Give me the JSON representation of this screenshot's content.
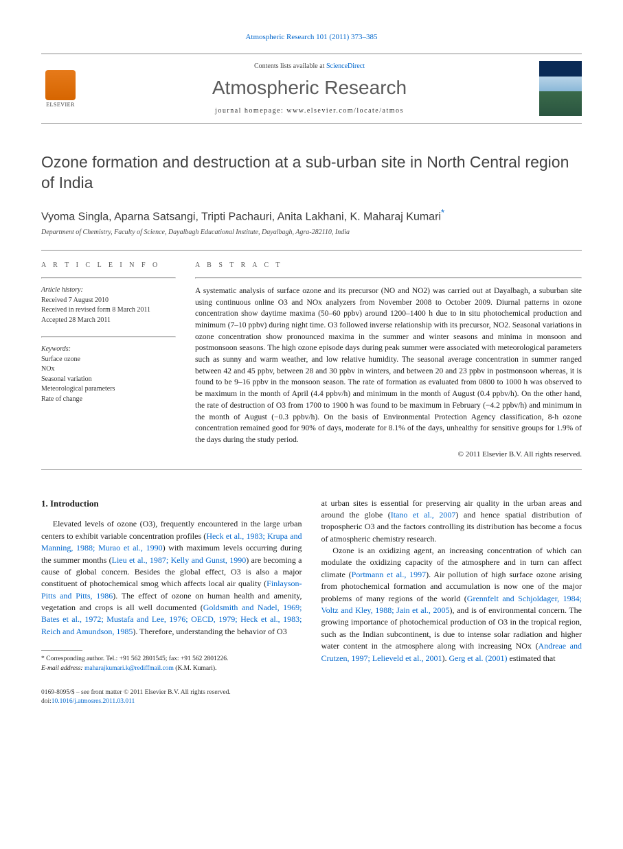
{
  "header": {
    "citation": "Atmospheric Research 101 (2011) 373–385",
    "contents_prefix": "Contents lists available at ",
    "contents_link": "ScienceDirect",
    "journal": "Atmospheric Research",
    "homepage_prefix": "journal homepage: ",
    "homepage_url": "www.elsevier.com/locate/atmos",
    "elsevier_label": "ELSEVIER"
  },
  "article": {
    "title": "Ozone formation and destruction at a sub-urban site in North Central region of India",
    "authors": "Vyoma Singla, Aparna Satsangi, Tripti Pachauri, Anita Lakhani, K. Maharaj Kumari",
    "corr_mark": "*",
    "affiliation": "Department of Chemistry, Faculty of Science, Dayalbagh Educational Institute, Dayalbagh, Agra-282110, India"
  },
  "info": {
    "head": "A R T I C L E   I N F O",
    "history_label": "Article history:",
    "received": "Received 7 August 2010",
    "revised": "Received in revised form 8 March 2011",
    "accepted": "Accepted 28 March 2011",
    "keywords_label": "Keywords:",
    "keywords": [
      "Surface ozone",
      "NOx",
      "Seasonal variation",
      "Meteorological parameters",
      "Rate of change"
    ]
  },
  "abstract": {
    "head": "A B S T R A C T",
    "text": "A systematic analysis of surface ozone and its precursor (NO and NO2) was carried out at Dayalbagh, a suburban site using continuous online O3 and NOx analyzers from November 2008 to October 2009. Diurnal patterns in ozone concentration show daytime maxima (50–60 ppbv) around 1200–1400 h due to in situ photochemical production and minimum (7–10 ppbv) during night time. O3 followed inverse relationship with its precursor, NO2. Seasonal variations in ozone concentration show pronounced maxima in the summer and winter seasons and minima in monsoon and postmonsoon seasons. The high ozone episode days during peak summer were associated with meteorological parameters such as sunny and warm weather, and low relative humidity. The seasonal average concentration in summer ranged between 42 and 45 ppbv, between 28 and 30 ppbv in winters, and between 20 and 23 ppbv in postmonsoon whereas, it is found to be 9–16 ppbv in the monsoon season. The rate of formation as evaluated from 0800 to 1000 h was observed to be maximum in the month of April (4.4 ppbv/h) and minimum in the month of August (0.4 ppbv/h). On the other hand, the rate of destruction of O3 from 1700 to 1900 h was found to be maximum in February (−4.2 ppbv/h) and minimum in the month of August (−0.3 ppbv/h). On the basis of Environmental Protection Agency classification, 8-h ozone concentration remained good for 90% of days, moderate for 8.1% of the days, unhealthy for sensitive groups for 1.9% of the days during the study period.",
    "copyright": "© 2011 Elsevier B.V. All rights reserved."
  },
  "body": {
    "section_heading": "1. Introduction",
    "col1_p1_a": "Elevated levels of ozone (O3), frequently encountered in the large urban centers to exhibit variable concentration profiles (",
    "col1_ref1": "Heck et al., 1983; Krupa and Manning, 1988; Murao et al., 1990",
    "col1_p1_b": ") with maximum levels occurring during the summer months (",
    "col1_ref2": "Lieu et al., 1987; Kelly and Gunst, 1990",
    "col1_p1_c": ") are becoming a cause of global concern. Besides the global effect, O3 is also a major constituent of photochemical smog which affects local air quality (",
    "col1_ref3": "Finlayson-Pitts and Pitts, 1986",
    "col1_p1_d": "). The effect of ozone on human health and amenity, vegetation and crops is all well documented (",
    "col1_ref4": "Goldsmith and Nadel, 1969; Bates et al., 1972; Mustafa and Lee, 1976; OECD, 1979; Heck et al., 1983; Reich and Amundson, 1985",
    "col1_p1_e": "). Therefore, understanding the behavior of O3",
    "col2_p1_a": "at urban sites is essential for preserving air quality in the urban areas and around the globe (",
    "col2_ref1": "Itano et al., 2007",
    "col2_p1_b": ") and hence spatial distribution of tropospheric O3 and the factors controlling its distribution has become a focus of atmospheric chemistry research.",
    "col2_p2_a": "Ozone is an oxidizing agent, an increasing concentration of which can modulate the oxidizing capacity of the atmosphere and in turn can affect climate (",
    "col2_ref2": "Portmann et al., 1997",
    "col2_p2_b": "). Air pollution of high surface ozone arising from photochemical formation and accumulation is now one of the major problems of many regions of the world (",
    "col2_ref3": "Grennfelt and Schjoldager, 1984; Voltz and Kley, 1988; Jain et al., 2005",
    "col2_p2_c": "), and is of environmental concern. The growing importance of photochemical production of O3 in the tropical region, such as the Indian subcontinent, is due to intense solar radiation and higher water content in the atmosphere along with increasing NOx (",
    "col2_ref4": "Andreae and Crutzen, 1997; Lelieveld et al., 2001",
    "col2_p2_d": "). ",
    "col2_ref5": "Gerg et al. (2001)",
    "col2_p2_e": " estimated that"
  },
  "footnote": {
    "corr": "* Corresponding author. Tel.: +91 562 2801545; fax: +91 562 2801226.",
    "email_label": "E-mail address: ",
    "email": "maharajkumari.k@rediffmail.com",
    "email_tail": " (K.M. Kumari)."
  },
  "bottom": {
    "line1": "0169-8095/$ – see front matter © 2011 Elsevier B.V. All rights reserved.",
    "doi_prefix": "doi:",
    "doi": "10.1016/j.atmosres.2011.03.011"
  },
  "colors": {
    "link": "#0066cc",
    "text": "#1a1a1a",
    "rule": "#888888"
  }
}
